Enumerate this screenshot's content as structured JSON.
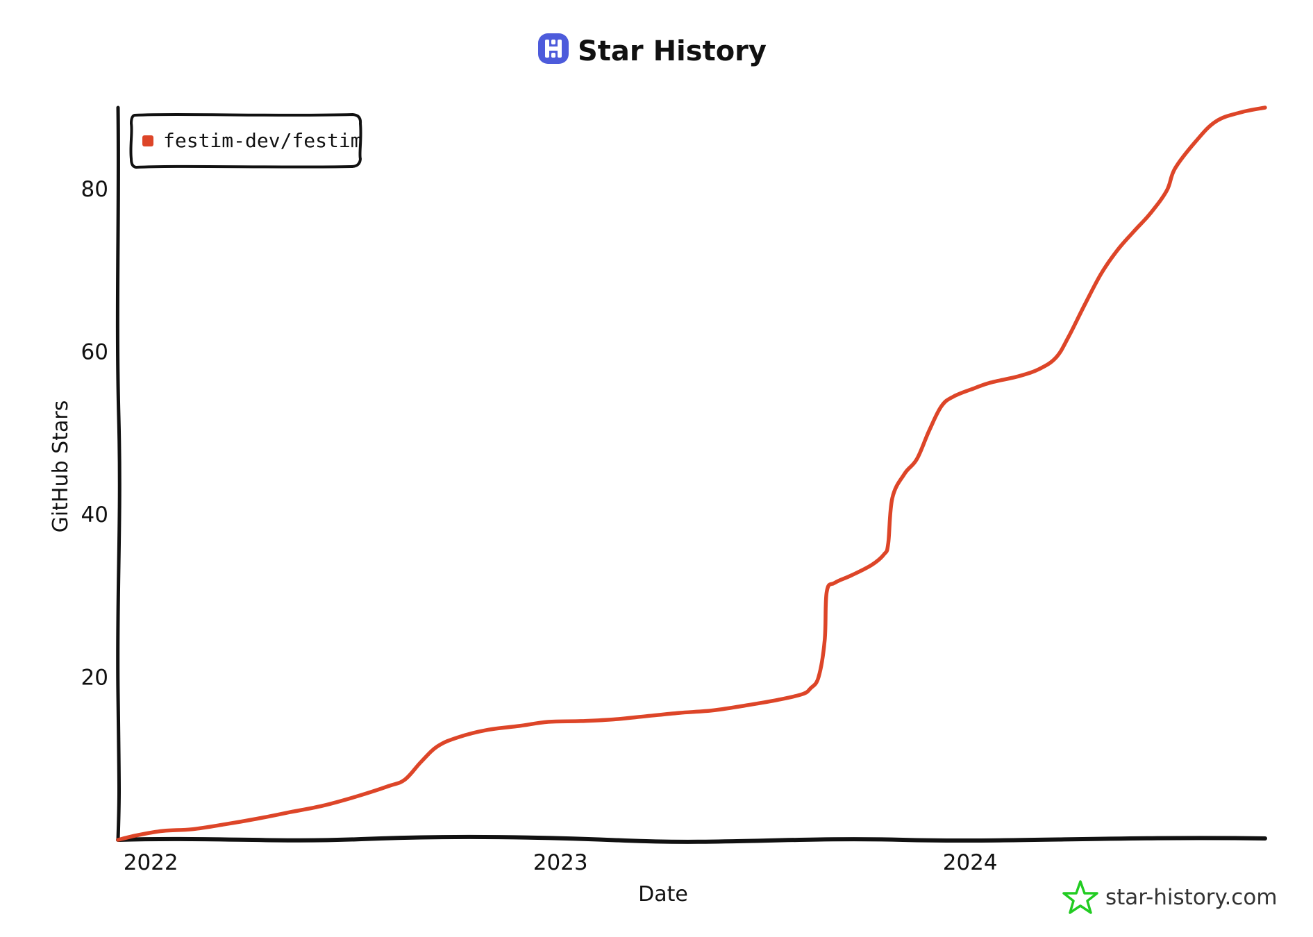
{
  "chart_data": {
    "type": "line",
    "title": "Star History",
    "xlabel": "Date",
    "ylabel": "GitHub Stars",
    "x_ticks": [
      "2022",
      "2023",
      "2024"
    ],
    "y_ticks": [
      20,
      40,
      60,
      80
    ],
    "ylim": [
      0,
      90
    ],
    "xlim": [
      2021.92,
      2024.72
    ],
    "grid": false,
    "legend_position": "top-left",
    "series": [
      {
        "name": "festim-dev/festim",
        "color": "#dd4528",
        "points": [
          [
            2021.92,
            0
          ],
          [
            2021.97,
            0.6
          ],
          [
            2022.03,
            1.1
          ],
          [
            2022.1,
            1.3
          ],
          [
            2022.18,
            1.9
          ],
          [
            2022.26,
            2.6
          ],
          [
            2022.34,
            3.4
          ],
          [
            2022.42,
            4.2
          ],
          [
            2022.5,
            5.3
          ],
          [
            2022.58,
            6.6
          ],
          [
            2022.62,
            7.4
          ],
          [
            2022.66,
            9.6
          ],
          [
            2022.7,
            11.5
          ],
          [
            2022.75,
            12.6
          ],
          [
            2022.82,
            13.5
          ],
          [
            2022.9,
            14.0
          ],
          [
            2022.97,
            14.5
          ],
          [
            2023.05,
            14.6
          ],
          [
            2023.13,
            14.8
          ],
          [
            2023.21,
            15.2
          ],
          [
            2023.29,
            15.6
          ],
          [
            2023.37,
            15.9
          ],
          [
            2023.45,
            16.5
          ],
          [
            2023.53,
            17.2
          ],
          [
            2023.59,
            17.9
          ],
          [
            2023.61,
            18.6
          ],
          [
            2023.63,
            20.0
          ],
          [
            2023.645,
            24.5
          ],
          [
            2023.65,
            30.5
          ],
          [
            2023.67,
            31.6
          ],
          [
            2023.71,
            32.5
          ],
          [
            2023.76,
            33.8
          ],
          [
            2023.79,
            35.1
          ],
          [
            2023.8,
            36.4
          ],
          [
            2023.81,
            42.0
          ],
          [
            2023.84,
            45.0
          ],
          [
            2023.87,
            46.8
          ],
          [
            2023.9,
            50.3
          ],
          [
            2023.93,
            53.3
          ],
          [
            2023.96,
            54.5
          ],
          [
            2024.01,
            55.5
          ],
          [
            2024.05,
            56.2
          ],
          [
            2024.12,
            57.0
          ],
          [
            2024.17,
            57.9
          ],
          [
            2024.21,
            59.3
          ],
          [
            2024.24,
            61.8
          ],
          [
            2024.28,
            65.8
          ],
          [
            2024.32,
            69.6
          ],
          [
            2024.36,
            72.5
          ],
          [
            2024.4,
            74.8
          ],
          [
            2024.44,
            77.0
          ],
          [
            2024.48,
            79.8
          ],
          [
            2024.5,
            82.5
          ],
          [
            2024.55,
            85.8
          ],
          [
            2024.6,
            88.3
          ],
          [
            2024.66,
            89.4
          ],
          [
            2024.72,
            90
          ]
        ]
      }
    ]
  },
  "watermark": {
    "text": "star-history.com",
    "color": "#22cc22"
  },
  "logo": {
    "name": "star-history-logo-icon",
    "color": "#4d5bdb"
  }
}
